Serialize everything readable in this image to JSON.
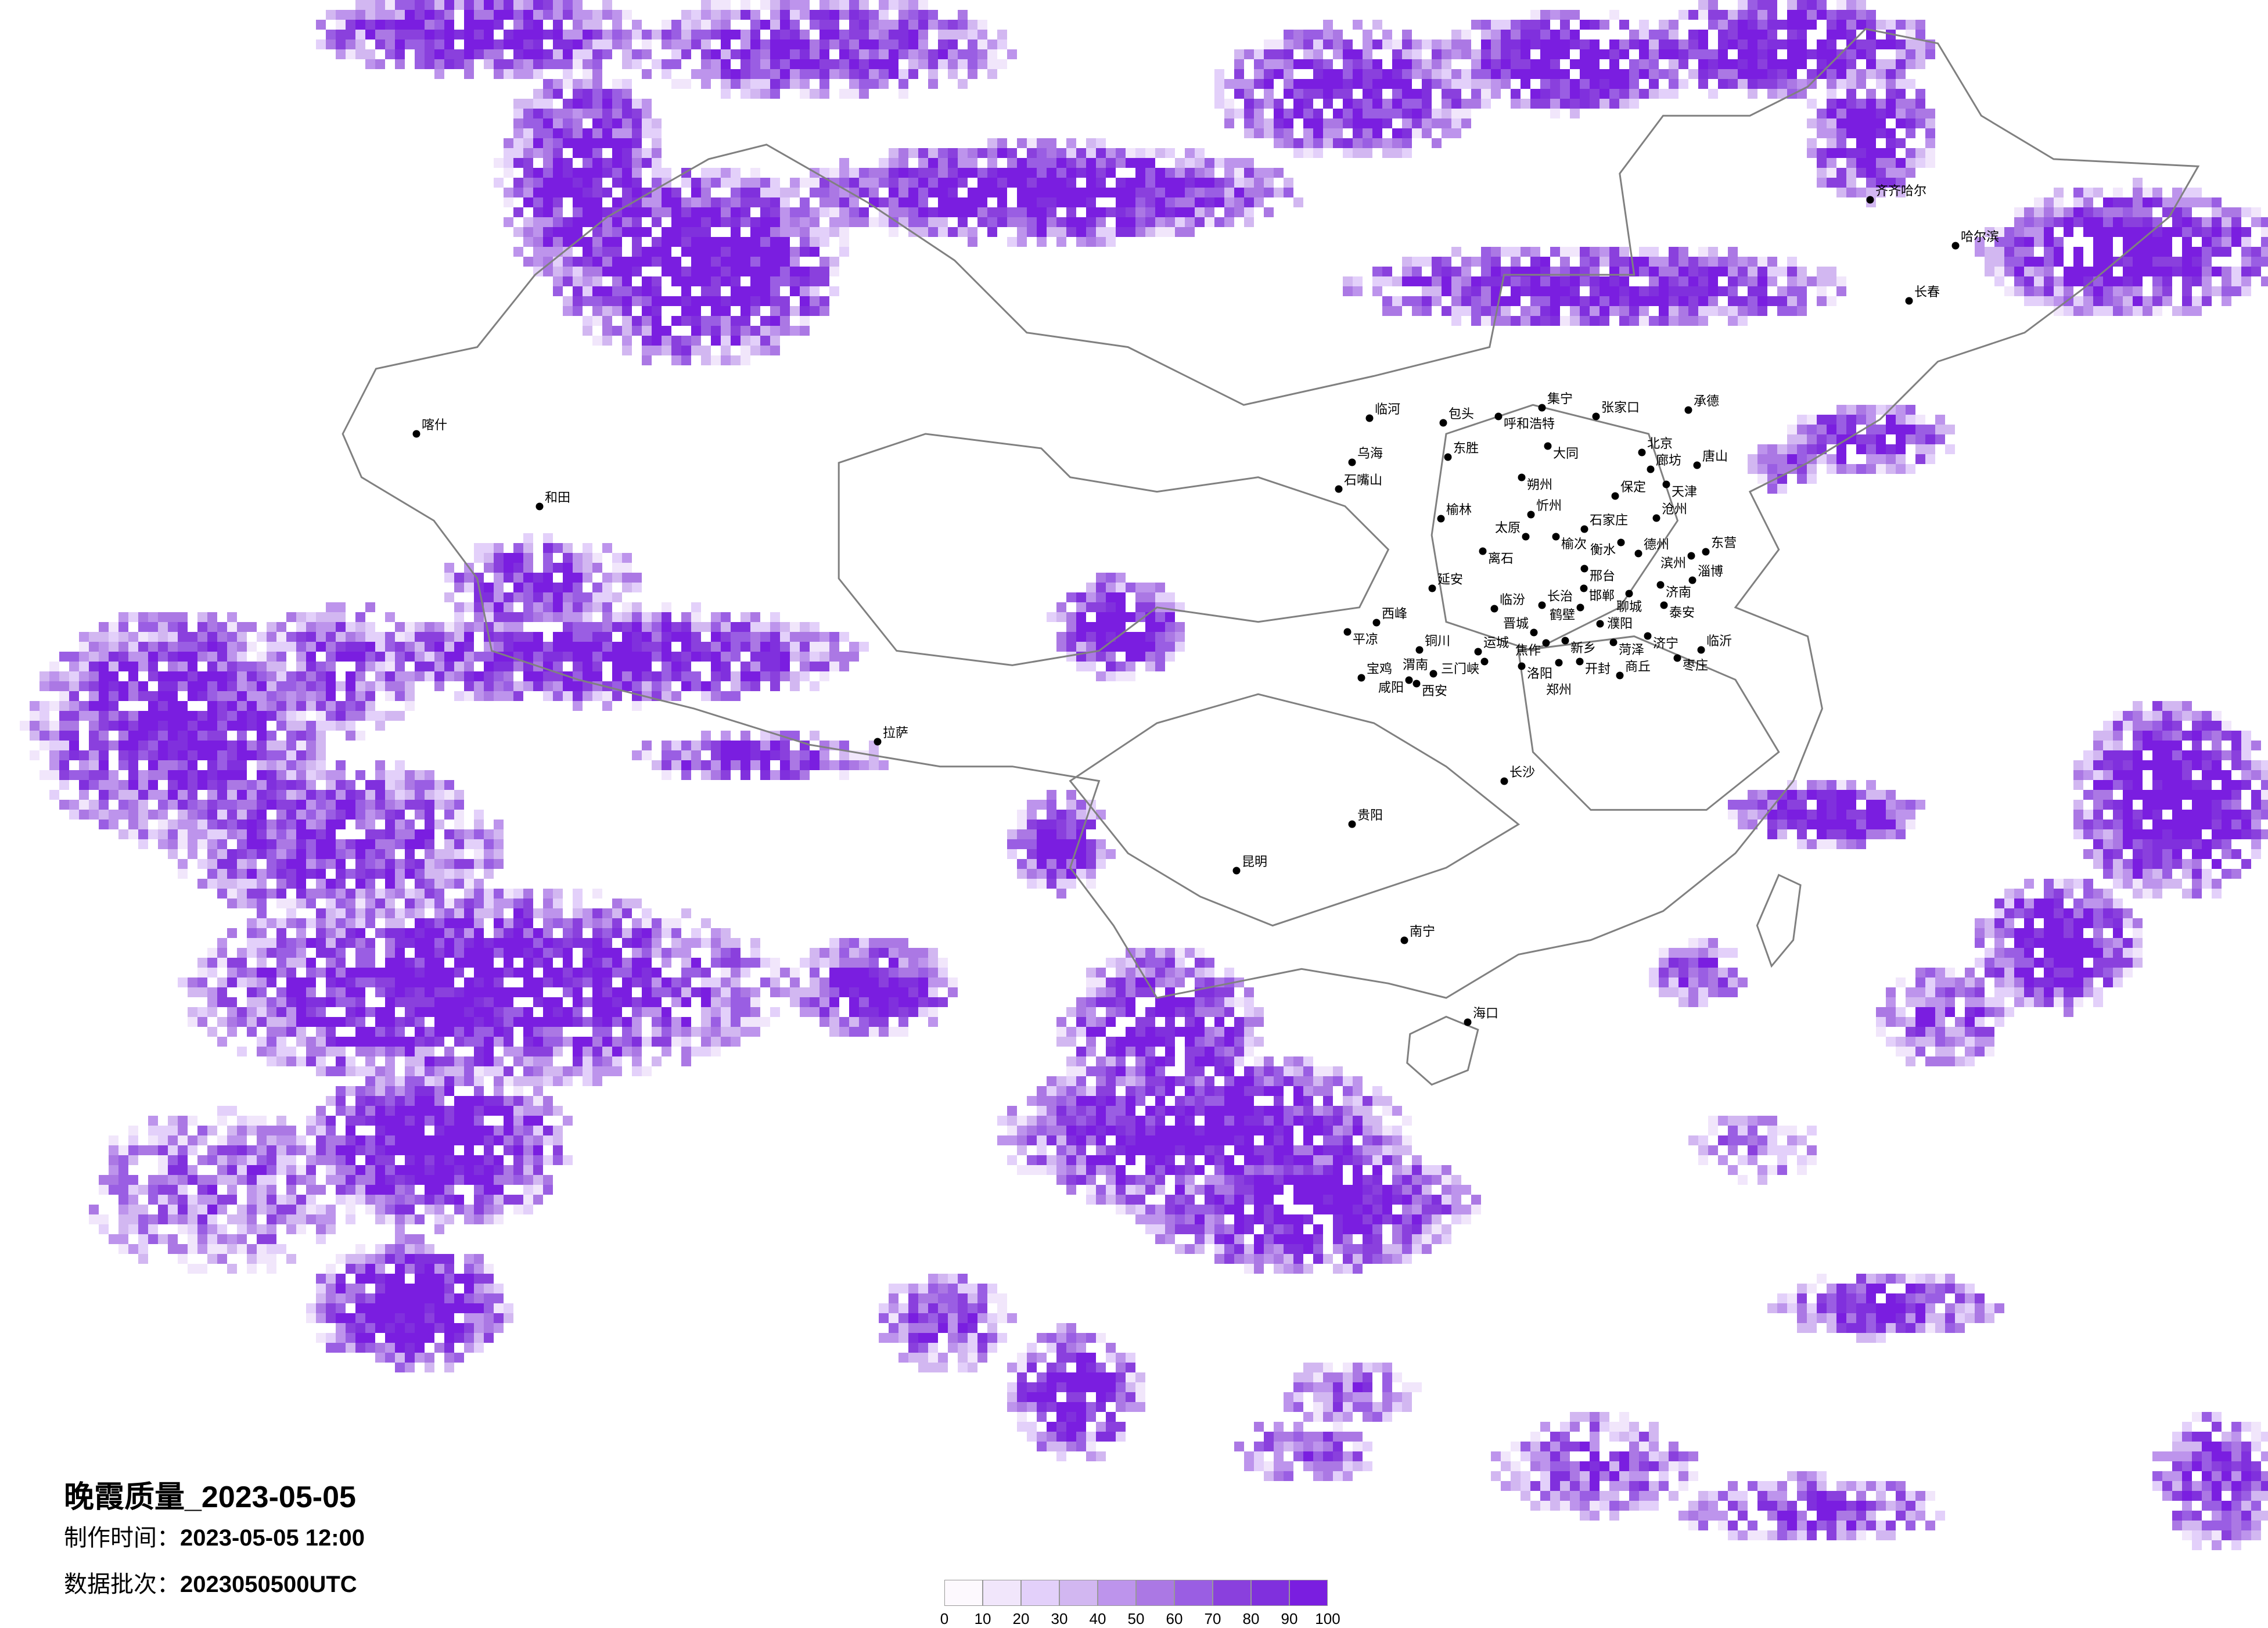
{
  "title": "晚霞质量_2023-05-05",
  "production_time": {
    "label": "制作时间：",
    "value": "2023-05-05 12:00"
  },
  "data_batch": {
    "label": "数据批次：",
    "value": "2023050500UTC"
  },
  "legend": {
    "ticks": [
      "0",
      "10",
      "20",
      "30",
      "40",
      "50",
      "60",
      "70",
      "80",
      "90",
      "100"
    ],
    "colors": [
      "#fdf9fe",
      "#f1e6fb",
      "#e3d0fa",
      "#d2b7f1",
      "#bd94ec",
      "#ab78e4",
      "#9a5ee3",
      "#8a40dd",
      "#8030dd",
      "#7a1ee0"
    ]
  },
  "map": {
    "boundary_color": "#808080",
    "city_marker_color": "#000000",
    "cities": [
      "临河",
      "包头",
      "呼和浩特",
      "集宁",
      "张家口",
      "承德",
      "乌海",
      "东胜",
      "大同",
      "北京",
      "廊坊",
      "唐山",
      "天津",
      "朔州",
      "保定",
      "石嘴山",
      "榆林",
      "忻州",
      "沧州",
      "太原",
      "榆次",
      "石家庄",
      "衡水",
      "离石",
      "德州",
      "滨州",
      "东营",
      "邢台",
      "邯郸",
      "淄博",
      "济南",
      "聊城",
      "延安",
      "泰安",
      "临汾",
      "长治",
      "鹤壁",
      "濮阳",
      "西峰",
      "平凉",
      "晋城",
      "济宁",
      "菏泽",
      "临沂",
      "铜川",
      "焦作",
      "新乡",
      "运城",
      "三门峡",
      "洛阳",
      "郑州",
      "开封",
      "枣庄",
      "宝鸡",
      "咸阳",
      "渭南",
      "西安",
      "商丘",
      "哈尔滨",
      "齐齐哈尔",
      "长春",
      "和田",
      "喀什",
      "拉萨",
      "海口",
      "昆明",
      "贵阳",
      "南宁",
      "长沙"
    ]
  }
}
